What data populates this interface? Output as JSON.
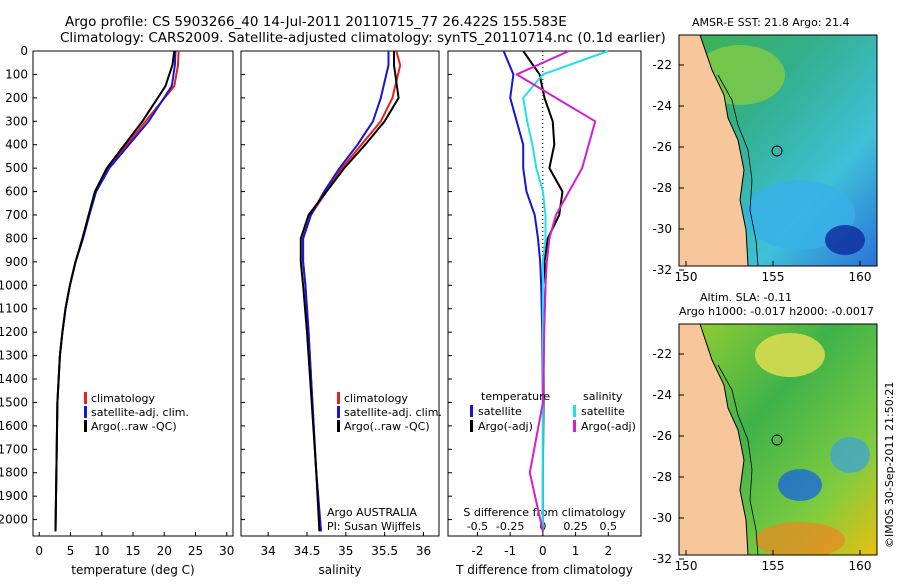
{
  "title": {
    "line1": "Argo profile: CS 5903266_40 14-Jul-2011 20110715_77 26.422S 155.583E",
    "line2": "Climatology: CARS2009. Satellite-adjusted climatology: synTS_20110714.nc (0.1d earlier)"
  },
  "colors": {
    "climatology": "#e8201c",
    "satellite": "#1515d8",
    "argo": "#000000",
    "salinity_sat": "#20e0e8",
    "salinity_argo": "#d020d0"
  },
  "y_ticks": [
    "0",
    "100",
    "200",
    "300",
    "400",
    "500",
    "600",
    "700",
    "800",
    "900",
    "1000",
    "1100",
    "1200",
    "1300",
    "1400",
    "1500",
    "1600",
    "1700",
    "1800",
    "1900",
    "2000"
  ],
  "legend": {
    "climatology": "climatology",
    "satellite": "satellite-adj. clim.",
    "argo": "Argo(..raw -QC)"
  },
  "diff_legend": {
    "temperature_head": "temperature",
    "salinity_head": "salinity",
    "satellite": "satellite",
    "argo": "Argo(-adj)"
  },
  "credit": {
    "line1": "Argo AUSTRALIA",
    "line2": "PI: Susan Wijffels"
  },
  "chart_data": [
    {
      "type": "line",
      "xlabel": "temperature (deg C)",
      "ylabel": "",
      "xlim": [
        -1,
        31
      ],
      "ylim": [
        2070,
        0
      ],
      "x_ticks": [
        0,
        5,
        10,
        15,
        20,
        25,
        30
      ],
      "series": [
        {
          "name": "climatology",
          "x": [
            22.3,
            22.2,
            21.6,
            17,
            11,
            9,
            8,
            7,
            5.8,
            4.9,
            4.2,
            3.7,
            3.3,
            2.9,
            2.6
          ],
          "y": [
            0,
            60,
            150,
            300,
            500,
            600,
            700,
            800,
            900,
            1000,
            1100,
            1200,
            1300,
            1500,
            2050
          ]
        },
        {
          "name": "satellite-adj. clim.",
          "x": [
            21.8,
            21.7,
            21.2,
            17.5,
            11.2,
            9.1,
            8,
            7,
            5.8,
            4.9,
            4.2,
            3.7,
            3.3,
            2.9,
            2.6
          ],
          "y": [
            0,
            60,
            150,
            300,
            500,
            600,
            700,
            800,
            900,
            1000,
            1100,
            1200,
            1300,
            1500,
            2050
          ]
        },
        {
          "name": "Argo(..raw -QC)",
          "x": [
            21.6,
            21.3,
            20.2,
            16.5,
            10.8,
            8.9,
            7.9,
            6.9,
            5.8,
            4.9,
            4.2,
            3.7,
            3.3,
            2.9,
            2.6
          ],
          "y": [
            0,
            60,
            150,
            300,
            500,
            600,
            700,
            800,
            900,
            1000,
            1100,
            1200,
            1300,
            1500,
            2050
          ]
        }
      ]
    },
    {
      "type": "line",
      "xlabel": "salinity",
      "ylabel": "",
      "xlim": [
        33.65,
        36.2
      ],
      "ylim": [
        2070,
        0
      ],
      "x_ticks": [
        34,
        34.5,
        35,
        35.5,
        36
      ],
      "x_tick_labels": [
        "34",
        "34.5",
        "35",
        "35.5",
        "36"
      ],
      "series": [
        {
          "name": "climatology",
          "x": [
            35.65,
            35.7,
            35.6,
            35.45,
            35.2,
            34.95,
            34.75,
            34.55,
            34.45,
            34.45,
            34.48,
            34.52,
            34.57,
            34.62,
            34.68
          ],
          "y": [
            0,
            60,
            200,
            300,
            400,
            500,
            600,
            700,
            800,
            900,
            1000,
            1200,
            1500,
            1800,
            2050
          ]
        },
        {
          "name": "satellite-adj. clim.",
          "x": [
            35.55,
            35.55,
            35.45,
            35.35,
            35.15,
            34.92,
            34.72,
            34.55,
            34.45,
            34.45,
            34.48,
            34.52,
            34.57,
            34.62,
            34.68
          ],
          "y": [
            0,
            60,
            200,
            300,
            400,
            500,
            600,
            700,
            800,
            900,
            1000,
            1200,
            1500,
            1800,
            2050
          ]
        },
        {
          "name": "Argo(..raw -QC)",
          "x": [
            35.62,
            35.62,
            35.68,
            35.5,
            35.25,
            34.98,
            34.75,
            34.52,
            34.42,
            34.42,
            34.45,
            34.5,
            34.56,
            34.62,
            34.66
          ],
          "y": [
            0,
            60,
            200,
            300,
            400,
            500,
            600,
            700,
            800,
            900,
            1000,
            1200,
            1500,
            1800,
            2050
          ]
        }
      ]
    },
    {
      "type": "line",
      "xlabel": "T difference from climatology",
      "top_axis_label": "S difference from climatology",
      "xlim": [
        -2.9,
        3.0
      ],
      "ylim": [
        2070,
        0
      ],
      "x_ticks": [
        -2,
        -1,
        0,
        1,
        2
      ],
      "x_tick_labels": [
        "-2",
        "-1",
        "0",
        "1",
        "2"
      ],
      "top_ticks": [
        -0.5,
        -0.25,
        0,
        0.25,
        0.5
      ],
      "top_tick_labels": [
        "-0.5",
        "-0.25",
        "0",
        "0.25",
        "0.5"
      ],
      "series": [
        {
          "name": "temperature satellite",
          "x": [
            -1.2,
            -0.9,
            -1.0,
            -0.8,
            -0.6,
            -0.6,
            -0.5,
            -0.25,
            -0.15,
            -0.08,
            -0.05,
            -0.02,
            0,
            0,
            0
          ],
          "y": [
            0,
            100,
            200,
            300,
            400,
            500,
            600,
            700,
            800,
            900,
            1000,
            1200,
            1500,
            1800,
            2050
          ]
        },
        {
          "name": "temperature Argo(-adj)",
          "x": [
            -0.6,
            -0.1,
            0.05,
            0.3,
            0.35,
            0.2,
            0.6,
            0.5,
            0.15,
            0.05,
            0.08,
            0.03,
            0.02,
            0,
            0
          ],
          "y": [
            0,
            100,
            200,
            300,
            400,
            500,
            600,
            700,
            800,
            900,
            1000,
            1200,
            1500,
            1800,
            2050
          ]
        },
        {
          "name": "salinity satellite",
          "x": [
            0.5,
            0,
            -0.15,
            -0.12,
            -0.08,
            -0.05,
            0,
            0.02,
            0.02,
            0,
            0,
            0,
            0,
            0,
            0
          ],
          "y": [
            0,
            100,
            200,
            300,
            400,
            500,
            600,
            700,
            800,
            900,
            1000,
            1200,
            1500,
            1800,
            2050
          ]
        },
        {
          "name": "salinity Argo(-adj)",
          "x": [
            0.2,
            -0.2,
            0.1,
            0.4,
            0.35,
            0.3,
            0.2,
            0.1,
            0.05,
            0.03,
            0.02,
            0.01,
            0,
            -0.1,
            0
          ],
          "y": [
            0,
            100,
            200,
            300,
            400,
            500,
            600,
            700,
            800,
            900,
            1000,
            1200,
            1500,
            1800,
            2050
          ]
        }
      ]
    }
  ],
  "maps": {
    "sst_title": "AMSR-E SST: 21.8 Argo: 21.4",
    "sla_title1": "Altim. SLA: -0.11",
    "sla_title2": "Argo h1000: -0.017 h2000: -0.0017",
    "lat_ticks": [
      "-22",
      "-24",
      "-26",
      "-28",
      "-30",
      "-32"
    ],
    "lon_ticks": [
      "150",
      "155",
      "160"
    ]
  },
  "footer": "©IMOS 30-Sep-2011 21:50:21"
}
